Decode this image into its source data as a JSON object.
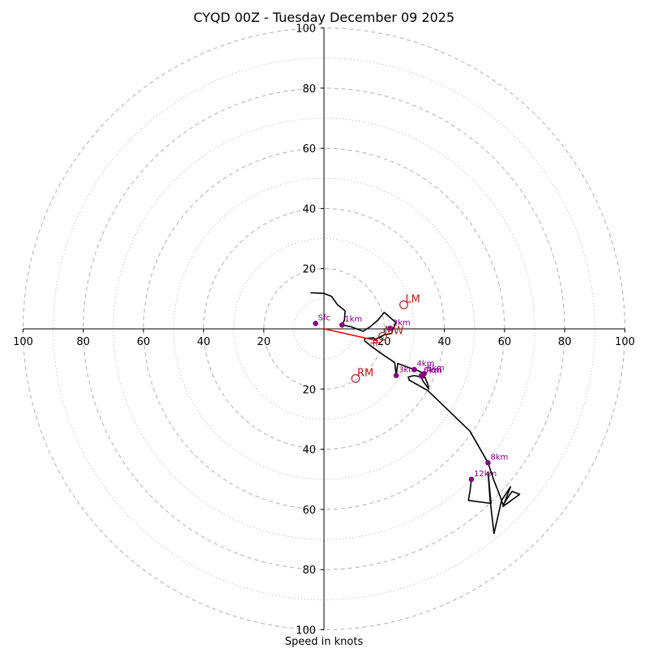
{
  "chart_data": {
    "type": "hodograph",
    "title": "CYQD 00Z - Tuesday December 09 2025",
    "xlabel": "Speed in knots",
    "rings": {
      "solid_every": 20,
      "dotted_every": 10,
      "max": 100
    },
    "x_ticks": [
      "100",
      "80",
      "60",
      "40",
      "20",
      "20",
      "40",
      "60",
      "80",
      "100"
    ],
    "y_ticks": [
      "100",
      "80",
      "60",
      "40",
      "20",
      "20",
      "40",
      "60",
      "80",
      "100"
    ],
    "tick_values_x": [
      -100,
      -80,
      -60,
      -40,
      -20,
      20,
      40,
      60,
      80,
      100
    ],
    "tick_values_y": [
      100,
      80,
      60,
      40,
      20,
      -20,
      -40,
      -60,
      -80,
      -100
    ],
    "trace": [
      [
        -4.5,
        12
      ],
      [
        0,
        11.8
      ],
      [
        2.5,
        10.8
      ],
      [
        4.5,
        8
      ],
      [
        7,
        6
      ],
      [
        6.8,
        3
      ],
      [
        6,
        1.3
      ],
      [
        9,
        0.7
      ],
      [
        13,
        -0.8
      ],
      [
        15.5,
        0.8
      ],
      [
        18,
        3
      ],
      [
        20,
        5.5
      ],
      [
        24,
        2
      ],
      [
        23,
        0.2
      ],
      [
        22.5,
        -1.5
      ],
      [
        20,
        -2
      ],
      [
        17,
        -3.5
      ],
      [
        16.5,
        -3
      ],
      [
        13.5,
        -3.2
      ],
      [
        13.5,
        -4
      ],
      [
        16,
        -6
      ],
      [
        19.5,
        -8.5
      ],
      [
        23.5,
        -11.2
      ],
      [
        24,
        -15.5
      ],
      [
        24.5,
        -11.5
      ],
      [
        30,
        -13.5
      ],
      [
        31.5,
        -14
      ],
      [
        32.5,
        -14.5
      ],
      [
        33,
        -14.8
      ],
      [
        33.5,
        -15
      ],
      [
        32.5,
        -15.5
      ],
      [
        32.8,
        -16
      ],
      [
        33.5,
        -16
      ],
      [
        34.5,
        -18.5
      ],
      [
        34.8,
        -20
      ],
      [
        33,
        -17.5
      ],
      [
        32.2,
        -16
      ],
      [
        30,
        -15.5
      ],
      [
        28,
        -16
      ],
      [
        28.3,
        -17
      ],
      [
        34.5,
        -20.5
      ],
      [
        48.5,
        -34
      ],
      [
        54.5,
        -44.5
      ],
      [
        56.5,
        -50.5
      ],
      [
        58.5,
        -55.5
      ],
      [
        59.5,
        -58.5
      ],
      [
        62.5,
        -54
      ],
      [
        65,
        -55
      ],
      [
        59.5,
        -59
      ],
      [
        62,
        -52.5
      ],
      [
        59,
        -57
      ],
      [
        56.5,
        -68
      ],
      [
        55.2,
        -57
      ],
      [
        54.5,
        -47.5
      ],
      [
        55.5,
        -58
      ],
      [
        48,
        -57
      ],
      [
        48.5,
        -54
      ],
      [
        49,
        -50
      ]
    ],
    "height_markers": [
      {
        "label": "Sfc",
        "u": -2.8,
        "v": 1.8
      },
      {
        "label": "1km",
        "u": 6,
        "v": 1.3
      },
      {
        "label": "2km",
        "u": 22,
        "v": 0.2
      },
      {
        "label": "3km",
        "u": 24,
        "v": -15.5
      },
      {
        "label": "4km",
        "u": 30,
        "v": -13.5
      },
      {
        "label": "5km",
        "u": 33.3,
        "v": -14.9
      },
      {
        "label": "6km",
        "u": 32.3,
        "v": -15.6
      },
      {
        "label": "7km",
        "u": 32.6,
        "v": -15.8
      },
      {
        "label": "8km",
        "u": 54.5,
        "v": -44.5
      },
      {
        "label": "12km",
        "u": 49,
        "v": -50
      }
    ],
    "storm_motions": [
      {
        "label": "LM",
        "u": 26.5,
        "v": 8
      },
      {
        "label": "MW",
        "u": 19.5,
        "v": -2.5
      },
      {
        "label": "RM",
        "u": 10.5,
        "v": -16.5
      },
      {
        "label": "+",
        "u": 17.5,
        "v": -4
      },
      {
        "label": "+",
        "u": 16.5,
        "v": -4.2
      }
    ],
    "shear_vector": {
      "from": [
        0,
        0
      ],
      "to": [
        18,
        -4
      ]
    },
    "colors": {
      "trace": "#000000",
      "marker": "#800080",
      "motion": "#b22222",
      "shear": "#ff0000",
      "grid": "#b0b0b0"
    }
  }
}
